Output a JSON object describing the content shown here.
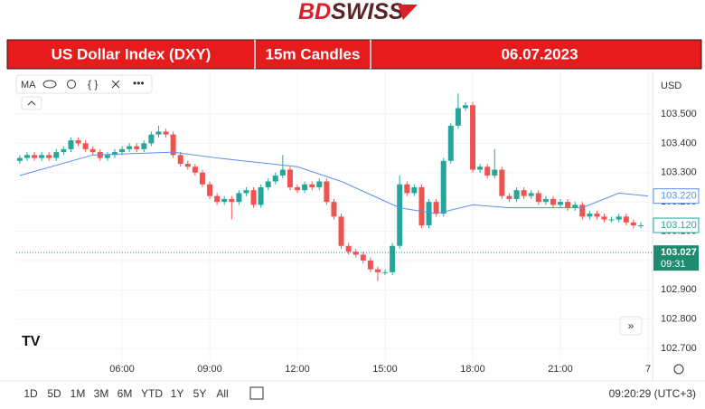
{
  "header": {
    "logo_a": "BD",
    "logo_b": "SWISS"
  },
  "banner": {
    "instrument": "US Dollar Index (DXY)",
    "interval": "15m Candles",
    "date": "06.07.2023"
  },
  "toolbar": {
    "indicator": "MA"
  },
  "chart_data": {
    "type": "candlestick",
    "currency": "USD",
    "up_color": "#26a69a",
    "down_color": "#ef5350",
    "grid": true,
    "xlim": [
      2.38,
      24.03
    ],
    "ylim": [
      102.623,
      103.642
    ],
    "xticks": [
      {
        "value": 6,
        "label": "06:00"
      },
      {
        "value": 9,
        "label": "09:00"
      },
      {
        "value": 12,
        "label": "12:00"
      },
      {
        "value": 15,
        "label": "15:00"
      },
      {
        "value": 18,
        "label": "18:00"
      },
      {
        "value": 21,
        "label": "21:00"
      },
      {
        "value": 24,
        "label": "7"
      }
    ],
    "yticks": [
      {
        "value": 102.7,
        "label": "102.700"
      },
      {
        "value": 102.8,
        "label": "102.800"
      },
      {
        "value": 102.9,
        "label": "102.900"
      },
      {
        "value": 103.0,
        "label": "103.000"
      },
      {
        "value": 103.1,
        "label": "103.100"
      },
      {
        "value": 103.2,
        "label": "103.200"
      },
      {
        "value": 103.3,
        "label": "103.300"
      },
      {
        "value": 103.4,
        "label": "103.400"
      },
      {
        "value": 103.5,
        "label": "103.500"
      }
    ],
    "x": [
      2.5,
      2.75,
      3,
      3.25,
      3.5,
      3.75,
      4,
      4.25,
      4.5,
      4.75,
      5,
      5.25,
      5.5,
      5.75,
      6,
      6.25,
      6.5,
      6.75,
      7,
      7.25,
      7.5,
      7.75,
      8,
      8.25,
      8.5,
      8.75,
      9,
      9.25,
      9.5,
      9.75,
      10,
      10.25,
      10.5,
      10.75,
      11,
      11.25,
      11.5,
      11.75,
      12,
      12.25,
      12.5,
      12.75,
      13,
      13.25,
      13.5,
      13.75,
      14,
      14.25,
      14.5,
      14.75,
      15,
      15.25,
      15.5,
      15.75,
      16,
      16.25,
      16.5,
      16.75,
      17,
      17.25,
      17.5,
      17.75,
      18,
      18.25,
      18.5,
      18.75,
      19,
      19.25,
      19.5,
      19.75,
      20,
      20.25,
      20.5,
      20.75,
      21,
      21.25,
      21.5,
      21.75,
      22,
      22.25,
      22.5,
      22.75,
      23,
      23.25,
      23.5,
      23.75
    ],
    "open": [
      103.34,
      103.35,
      103.36,
      103.35,
      103.36,
      103.35,
      103.37,
      103.38,
      103.41,
      103.4,
      103.38,
      103.37,
      103.35,
      103.36,
      103.37,
      103.38,
      103.39,
      103.38,
      103.4,
      103.43,
      103.44,
      103.43,
      103.36,
      103.33,
      103.32,
      103.3,
      103.26,
      103.22,
      103.2,
      103.21,
      103.2,
      103.23,
      103.24,
      103.19,
      103.25,
      103.27,
      103.29,
      103.31,
      103.25,
      103.24,
      103.26,
      103.25,
      103.27,
      103.2,
      103.15,
      103.05,
      103.03,
      103.02,
      103.0,
      102.97,
      102.96,
      102.96,
      103.05,
      103.26,
      103.23,
      103.25,
      103.12,
      103.2,
      103.16,
      103.34,
      103.46,
      103.52,
      103.53,
      103.31,
      103.32,
      103.29,
      103.31,
      103.22,
      103.21,
      103.24,
      103.22,
      103.23,
      103.2,
      103.21,
      103.19,
      103.2,
      103.18,
      103.19,
      103.15,
      103.16,
      103.15,
      103.14,
      103.14,
      103.15,
      103.13,
      103.12
    ],
    "high": [
      103.36,
      103.37,
      103.37,
      103.37,
      103.37,
      103.38,
      103.39,
      103.42,
      103.42,
      103.41,
      103.39,
      103.38,
      103.37,
      103.38,
      103.39,
      103.4,
      103.4,
      103.41,
      103.44,
      103.46,
      103.45,
      103.44,
      103.37,
      103.34,
      103.33,
      103.31,
      103.27,
      103.23,
      103.22,
      103.22,
      103.24,
      103.25,
      103.25,
      103.26,
      103.28,
      103.3,
      103.36,
      103.32,
      103.26,
      103.27,
      103.27,
      103.28,
      103.28,
      103.21,
      103.16,
      103.06,
      103.04,
      103.03,
      103.01,
      102.98,
      102.97,
      103.06,
      103.29,
      103.27,
      103.26,
      103.26,
      103.21,
      103.21,
      103.35,
      103.47,
      103.57,
      103.54,
      103.54,
      103.33,
      103.33,
      103.38,
      103.32,
      103.23,
      103.25,
      103.25,
      103.24,
      103.24,
      103.22,
      103.22,
      103.21,
      103.21,
      103.2,
      103.2,
      103.17,
      103.17,
      103.16,
      103.15,
      103.16,
      103.16,
      103.14,
      103.13
    ],
    "low": [
      103.33,
      103.34,
      103.34,
      103.34,
      103.34,
      103.34,
      103.36,
      103.37,
      103.39,
      103.37,
      103.36,
      103.34,
      103.34,
      103.35,
      103.36,
      103.37,
      103.37,
      103.37,
      103.39,
      103.42,
      103.42,
      103.35,
      103.32,
      103.31,
      103.29,
      103.25,
      103.21,
      103.19,
      103.19,
      103.14,
      103.19,
      103.22,
      103.18,
      103.18,
      103.24,
      103.26,
      103.28,
      103.24,
      103.23,
      103.23,
      103.24,
      103.24,
      103.19,
      103.14,
      103.04,
      103.02,
      103.01,
      102.99,
      102.96,
      102.93,
      102.95,
      102.95,
      103.04,
      103.22,
      103.22,
      103.11,
      103.11,
      103.15,
      103.15,
      103.33,
      103.45,
      103.51,
      103.3,
      103.3,
      103.28,
      103.28,
      103.21,
      103.2,
      103.2,
      103.21,
      103.21,
      103.19,
      103.19,
      103.18,
      103.18,
      103.17,
      103.17,
      103.14,
      103.14,
      103.14,
      103.13,
      103.13,
      103.13,
      103.12,
      103.11,
      103.11
    ],
    "close": [
      103.35,
      103.36,
      103.35,
      103.36,
      103.35,
      103.37,
      103.38,
      103.41,
      103.4,
      103.38,
      103.37,
      103.35,
      103.36,
      103.37,
      103.38,
      103.39,
      103.38,
      103.4,
      103.43,
      103.44,
      103.43,
      103.36,
      103.33,
      103.32,
      103.3,
      103.26,
      103.22,
      103.2,
      103.21,
      103.2,
      103.23,
      103.24,
      103.19,
      103.25,
      103.27,
      103.29,
      103.31,
      103.25,
      103.24,
      103.26,
      103.25,
      103.27,
      103.2,
      103.15,
      103.05,
      103.03,
      103.02,
      103.0,
      102.97,
      102.96,
      102.96,
      103.05,
      103.26,
      103.23,
      103.25,
      103.12,
      103.2,
      103.16,
      103.34,
      103.46,
      103.52,
      103.53,
      103.31,
      103.32,
      103.29,
      103.31,
      103.22,
      103.21,
      103.24,
      103.22,
      103.23,
      103.2,
      103.21,
      103.19,
      103.2,
      103.18,
      103.19,
      103.15,
      103.16,
      103.15,
      103.14,
      103.14,
      103.15,
      103.13,
      103.12,
      103.12
    ],
    "moving_average": {
      "color": "#5b8ff0",
      "x": [
        2.5,
        5,
        7.75,
        9.25,
        12,
        13.5,
        15.5,
        16.75,
        18,
        19.25,
        21.75,
        23,
        24
      ],
      "values": [
        103.29,
        103.36,
        103.37,
        103.35,
        103.32,
        103.27,
        103.18,
        103.16,
        103.19,
        103.18,
        103.18,
        103.23,
        103.22
      ]
    },
    "price_labels": [
      {
        "value": 103.22,
        "label": "103.220",
        "color": "#5b8ff0",
        "filled": false
      },
      {
        "value": 103.12,
        "label": "103.120",
        "color": "#26a69a",
        "filled": false
      },
      {
        "value": 103.027,
        "label": "103.027",
        "countdown": "09:31",
        "color": "#1e8a6f",
        "filled": true
      }
    ]
  },
  "footer": {
    "ranges": [
      "1D",
      "5D",
      "1M",
      "3M",
      "6M",
      "YTD",
      "1Y",
      "5Y",
      "All"
    ],
    "clock": "09:20:29 (UTC+3)"
  }
}
